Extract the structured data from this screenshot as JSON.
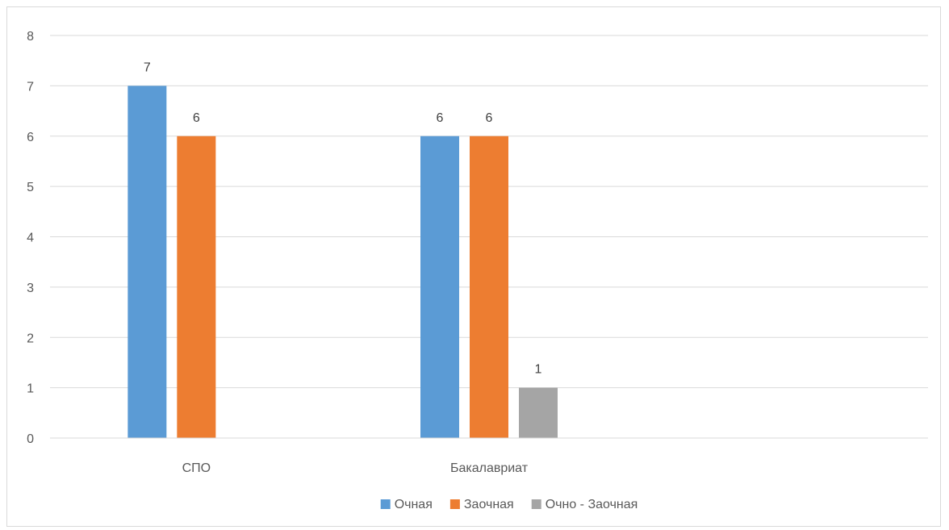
{
  "chart_data": {
    "type": "bar",
    "categories": [
      "СПО",
      "Бакалавриат",
      ""
    ],
    "series": [
      {
        "name": "Очная",
        "values": [
          7,
          6,
          null
        ],
        "color": "#5b9bd5"
      },
      {
        "name": "Заочная",
        "values": [
          6,
          6,
          null
        ],
        "color": "#ed7d31"
      },
      {
        "name": "Очно - Заочная",
        "values": [
          null,
          1,
          null
        ],
        "color": "#a5a5a5"
      }
    ],
    "ylim": [
      0,
      8
    ],
    "yticks": [
      "0",
      "1",
      "2",
      "3",
      "4",
      "5",
      "6",
      "7",
      "8"
    ],
    "grid": true,
    "legend_position": "bottom",
    "data_labels": true
  }
}
